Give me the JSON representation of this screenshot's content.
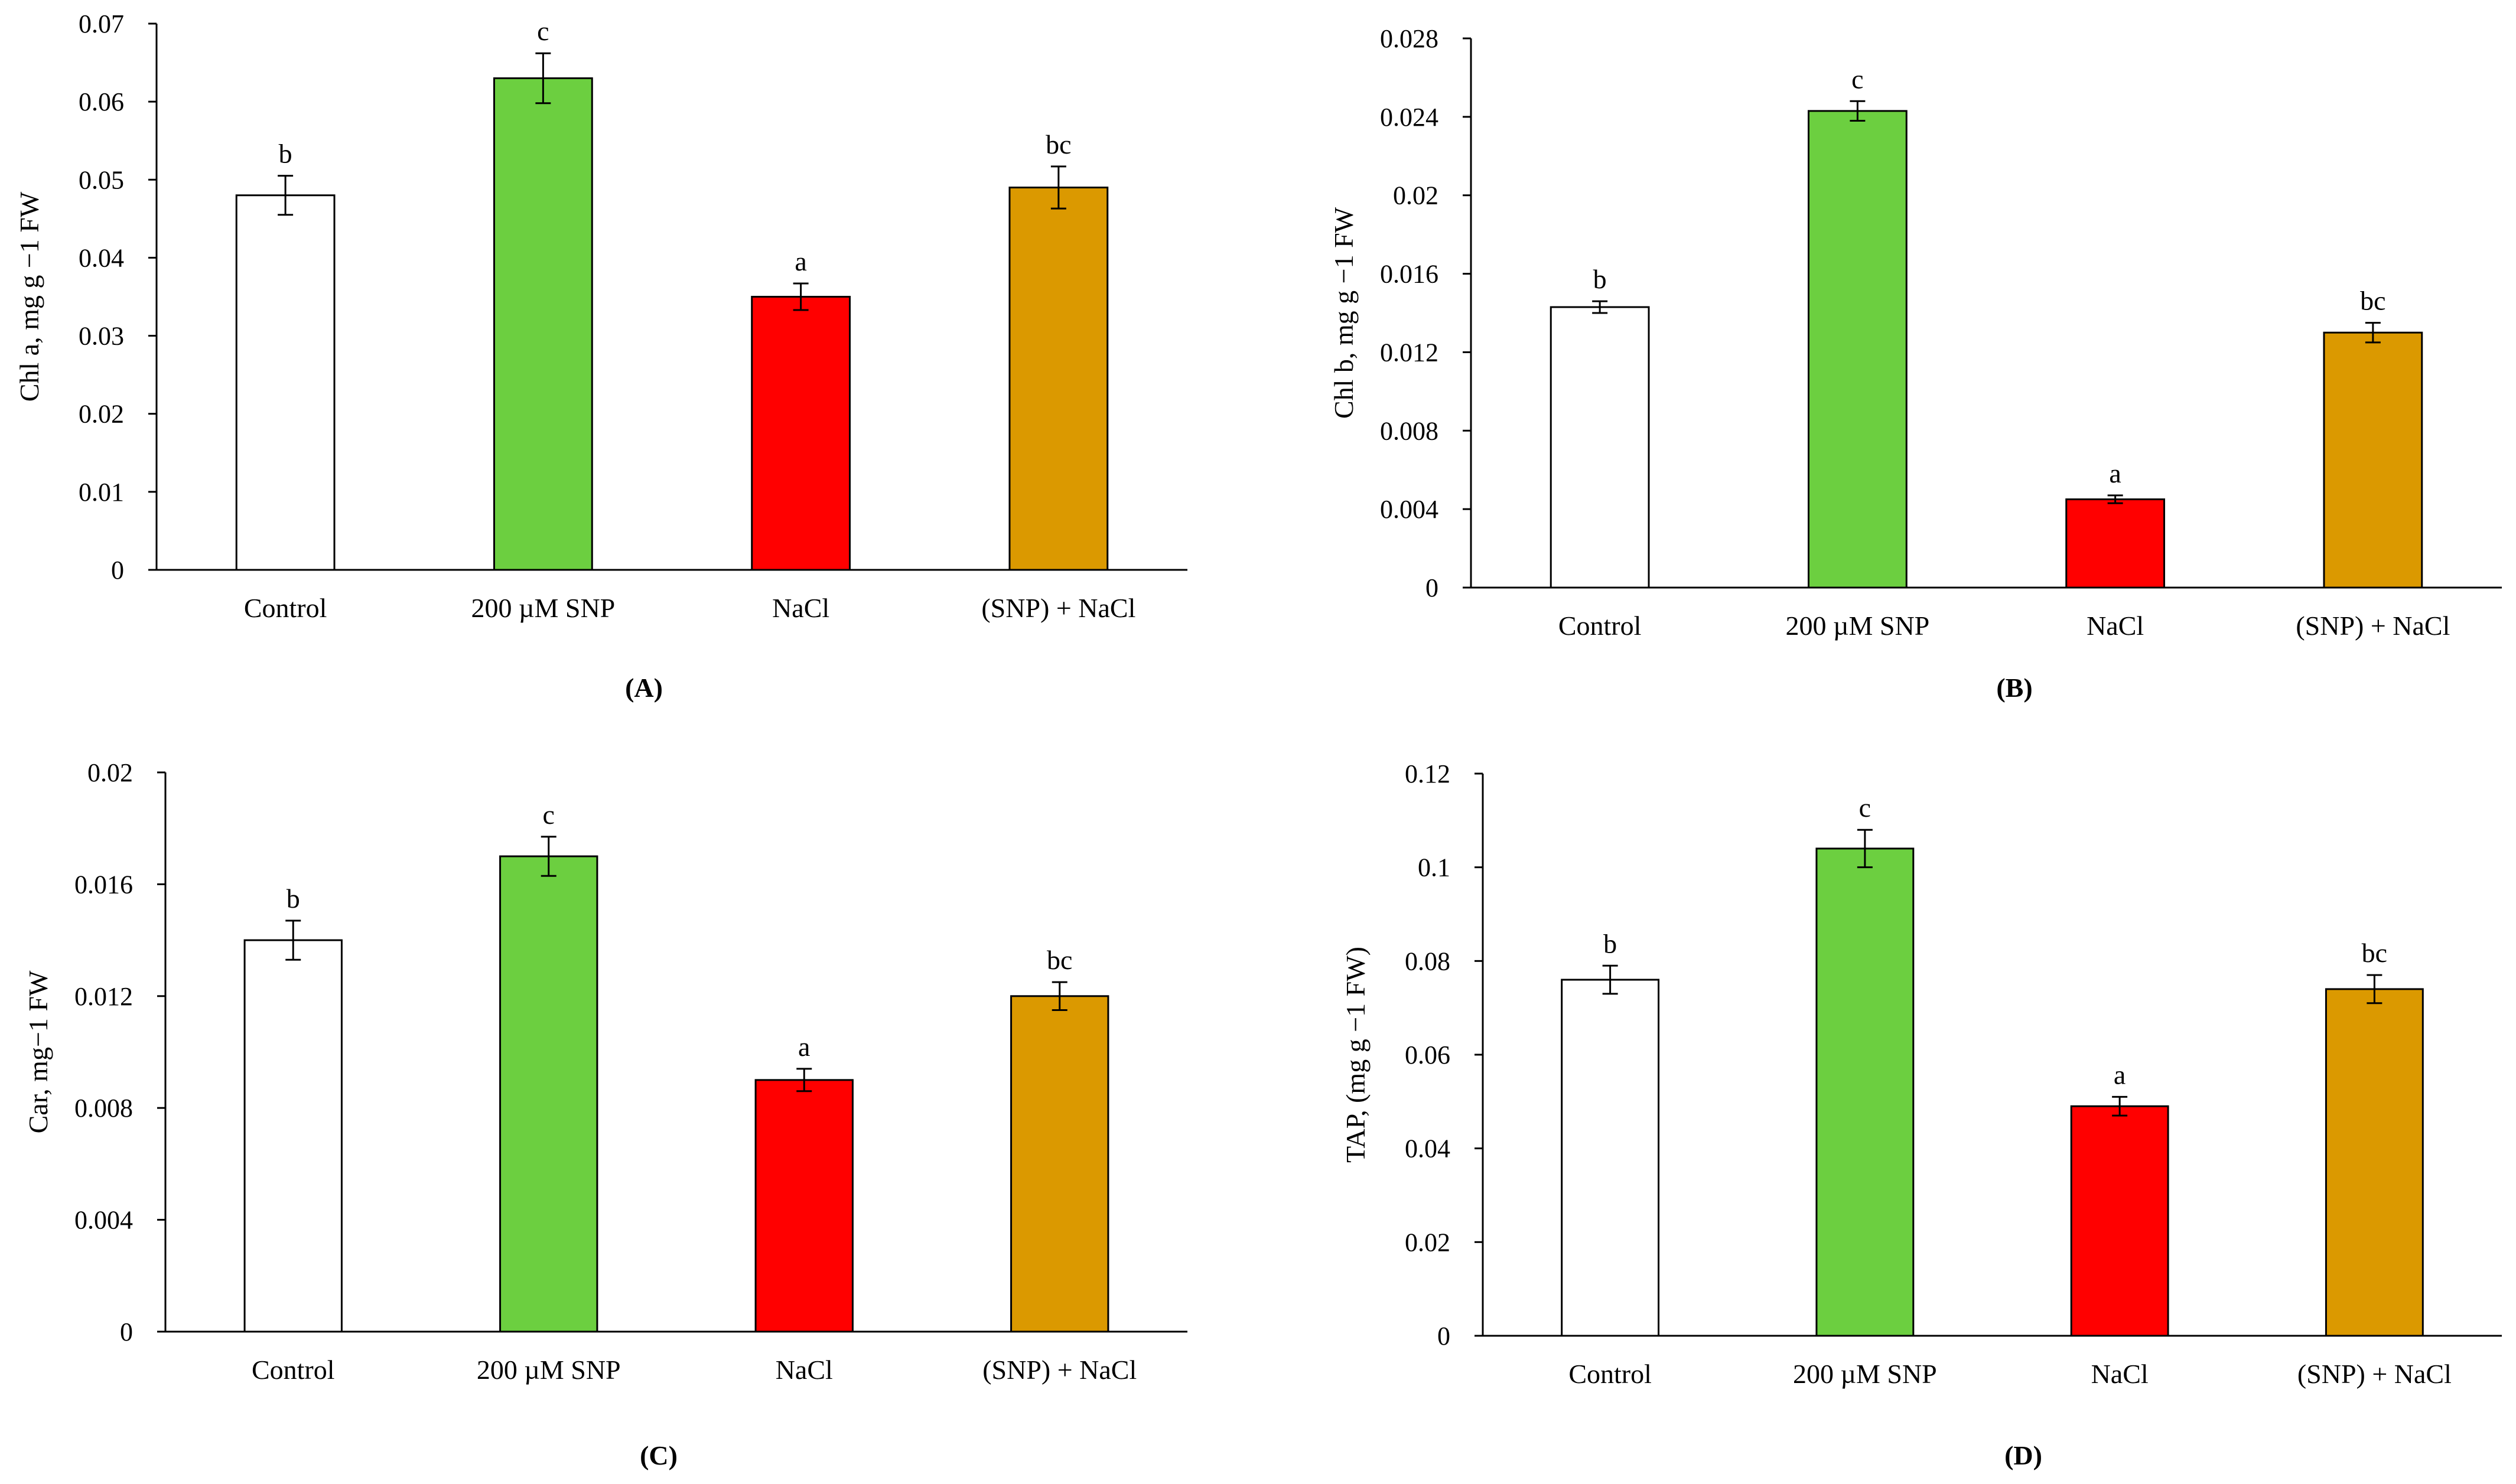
{
  "chart_data": [
    {
      "type": "bar",
      "panel_label": "(A)",
      "ylabel": "Chl a, mg g −1 FW",
      "categories": [
        "Control",
        "200 µM SNP",
        "NaCl",
        "(SNP) + NaCl"
      ],
      "values": [
        0.048,
        0.063,
        0.035,
        0.049
      ],
      "errors": [
        0.0025,
        0.0032,
        0.0017,
        0.0027
      ],
      "letters": [
        "b",
        "c",
        "a",
        "bc"
      ],
      "ylim": [
        0,
        0.07
      ],
      "yticks": [
        0,
        0.01,
        0.02,
        0.03,
        0.04,
        0.05,
        0.06,
        0.07
      ],
      "ytick_labels": [
        "0",
        "0.01",
        "0.02",
        "0.03",
        "0.04",
        "0.05",
        "0.06",
        "0.07"
      ],
      "colors": [
        "#ffffff",
        "#6ccf40",
        "#ff0000",
        "#db9900"
      ]
    },
    {
      "type": "bar",
      "panel_label": "(B)",
      "ylabel": "Chl b, mg g −1 FW",
      "categories": [
        "Control",
        "200 µM SNP",
        "NaCl",
        "(SNP) + NaCl"
      ],
      "values": [
        0.0143,
        0.0243,
        0.0045,
        0.013
      ],
      "errors": [
        0.0003,
        0.0005,
        0.0002,
        0.0005
      ],
      "letters": [
        "b",
        "c",
        "a",
        "bc"
      ],
      "ylim": [
        0,
        0.028
      ],
      "yticks": [
        0,
        0.004,
        0.008,
        0.012,
        0.016,
        0.02,
        0.024,
        0.028
      ],
      "ytick_labels": [
        "0",
        "0.004",
        "0.008",
        "0.012",
        "0.016",
        "0.02",
        "0.024",
        "0.028"
      ],
      "colors": [
        "#ffffff",
        "#6ccf40",
        "#ff0000",
        "#db9900"
      ]
    },
    {
      "type": "bar",
      "panel_label": "(C)",
      "ylabel": "Car, mg−1 FW",
      "categories": [
        "Control",
        "200 µM SNP",
        "NaCl",
        "(SNP) + NaCl"
      ],
      "values": [
        0.014,
        0.017,
        0.009,
        0.012
      ],
      "errors": [
        0.0007,
        0.0007,
        0.0004,
        0.0005
      ],
      "letters": [
        "b",
        "c",
        "a",
        "bc"
      ],
      "ylim": [
        0,
        0.02
      ],
      "yticks": [
        0,
        0.004,
        0.008,
        0.012,
        0.016,
        0.02
      ],
      "ytick_labels": [
        "0",
        "0.004",
        "0.008",
        "0.012",
        "0.016",
        "0.02"
      ],
      "colors": [
        "#ffffff",
        "#6ccf40",
        "#ff0000",
        "#db9900"
      ]
    },
    {
      "type": "bar",
      "panel_label": "(D)",
      "ylabel": "TAP, (mg g −1 FW)",
      "categories": [
        "Control",
        "200 µM SNP",
        "NaCl",
        "(SNP) + NaCl"
      ],
      "values": [
        0.076,
        0.104,
        0.049,
        0.074
      ],
      "errors": [
        0.003,
        0.004,
        0.002,
        0.003
      ],
      "letters": [
        "b",
        "c",
        "a",
        "bc"
      ],
      "ylim": [
        0,
        0.12
      ],
      "yticks": [
        0,
        0.02,
        0.04,
        0.06,
        0.08,
        0.1,
        0.12
      ],
      "ytick_labels": [
        "0",
        "0.02",
        "0.04",
        "0.06",
        "0.08",
        "0.1",
        "0.12"
      ],
      "colors": [
        "#ffffff",
        "#6ccf40",
        "#ff0000",
        "#db9900"
      ]
    }
  ]
}
